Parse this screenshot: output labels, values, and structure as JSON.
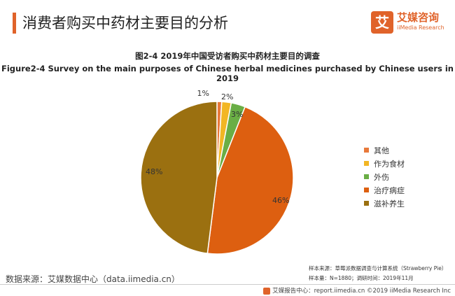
{
  "header": {
    "title": "消费者购买中药材主要目的分析"
  },
  "logo": {
    "mark": "艾",
    "name_cn": "艾媒咨询",
    "name_en": "iiMedia Research"
  },
  "chart_data": {
    "type": "pie",
    "title": "图2-4 2019年中国受访者购买中药材主要目的调查",
    "subtitle": "Figure2-4 Survey on the main purposes of Chinese herbal medicines purchased by Chinese users in 2019",
    "categories": [
      "其他",
      "作为食材",
      "外伤",
      "治疗病症",
      "滋补养生"
    ],
    "values": [
      1,
      2,
      3,
      46,
      48
    ],
    "labels": [
      "1%",
      "2%",
      "3%",
      "46%",
      "48%"
    ],
    "colors": [
      "#e8793a",
      "#f2b624",
      "#6aae45",
      "#dd5f10",
      "#9b7010"
    ],
    "legend_position": "right"
  },
  "source": {
    "left": "数据来源：艾媒数据中心（data.iimedia.cn）"
  },
  "notes": {
    "sample_source": "样本来源：草莓派数据调查与计算系统（Strawberry Pie）",
    "sample_size": "样本量：N=1880；调研时间：2019年11月"
  },
  "footer": {
    "text": "艾媒报告中心：report.iimedia.cn  ©2019  iiMedia Research Inc"
  }
}
